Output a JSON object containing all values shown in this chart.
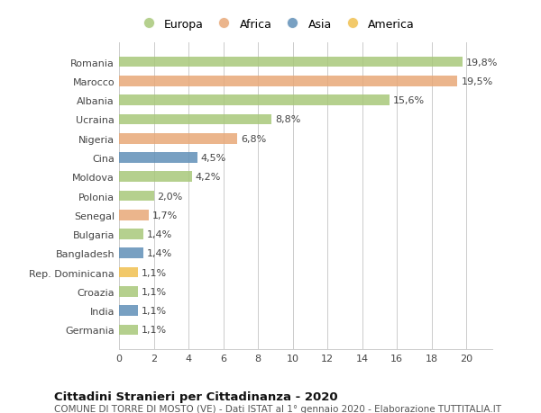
{
  "countries": [
    "Romania",
    "Marocco",
    "Albania",
    "Ucraina",
    "Nigeria",
    "Cina",
    "Moldova",
    "Polonia",
    "Senegal",
    "Bulgaria",
    "Bangladesh",
    "Rep. Dominicana",
    "Croazia",
    "India",
    "Germania"
  ],
  "values": [
    19.8,
    19.5,
    15.6,
    8.8,
    6.8,
    4.5,
    4.2,
    2.0,
    1.7,
    1.4,
    1.4,
    1.1,
    1.1,
    1.1,
    1.1
  ],
  "labels": [
    "19,8%",
    "19,5%",
    "15,6%",
    "8,8%",
    "6,8%",
    "4,5%",
    "4,2%",
    "2,0%",
    "1,7%",
    "1,4%",
    "1,4%",
    "1,1%",
    "1,1%",
    "1,1%",
    "1,1%"
  ],
  "continents": [
    "Europa",
    "Africa",
    "Europa",
    "Europa",
    "Africa",
    "Asia",
    "Europa",
    "Europa",
    "Africa",
    "Europa",
    "Asia",
    "America",
    "Europa",
    "Asia",
    "Europa"
  ],
  "continent_colors": {
    "Europa": "#a8c87a",
    "Africa": "#e8a878",
    "Asia": "#6090b8",
    "America": "#f0c050"
  },
  "legend_order": [
    "Europa",
    "Africa",
    "Asia",
    "America"
  ],
  "xlim": [
    0,
    21.5
  ],
  "xticks": [
    0,
    2,
    4,
    6,
    8,
    10,
    12,
    14,
    16,
    18,
    20
  ],
  "title": "Cittadini Stranieri per Cittadinanza - 2020",
  "subtitle": "COMUNE DI TORRE DI MOSTO (VE) - Dati ISTAT al 1° gennaio 2020 - Elaborazione TUTTITALIA.IT",
  "background_color": "#ffffff",
  "bar_height": 0.55,
  "grid_color": "#cccccc",
  "label_fontsize": 8.0,
  "tick_fontsize": 8.0,
  "legend_fontsize": 9.0,
  "title_fontsize": 9.5,
  "subtitle_fontsize": 7.5
}
